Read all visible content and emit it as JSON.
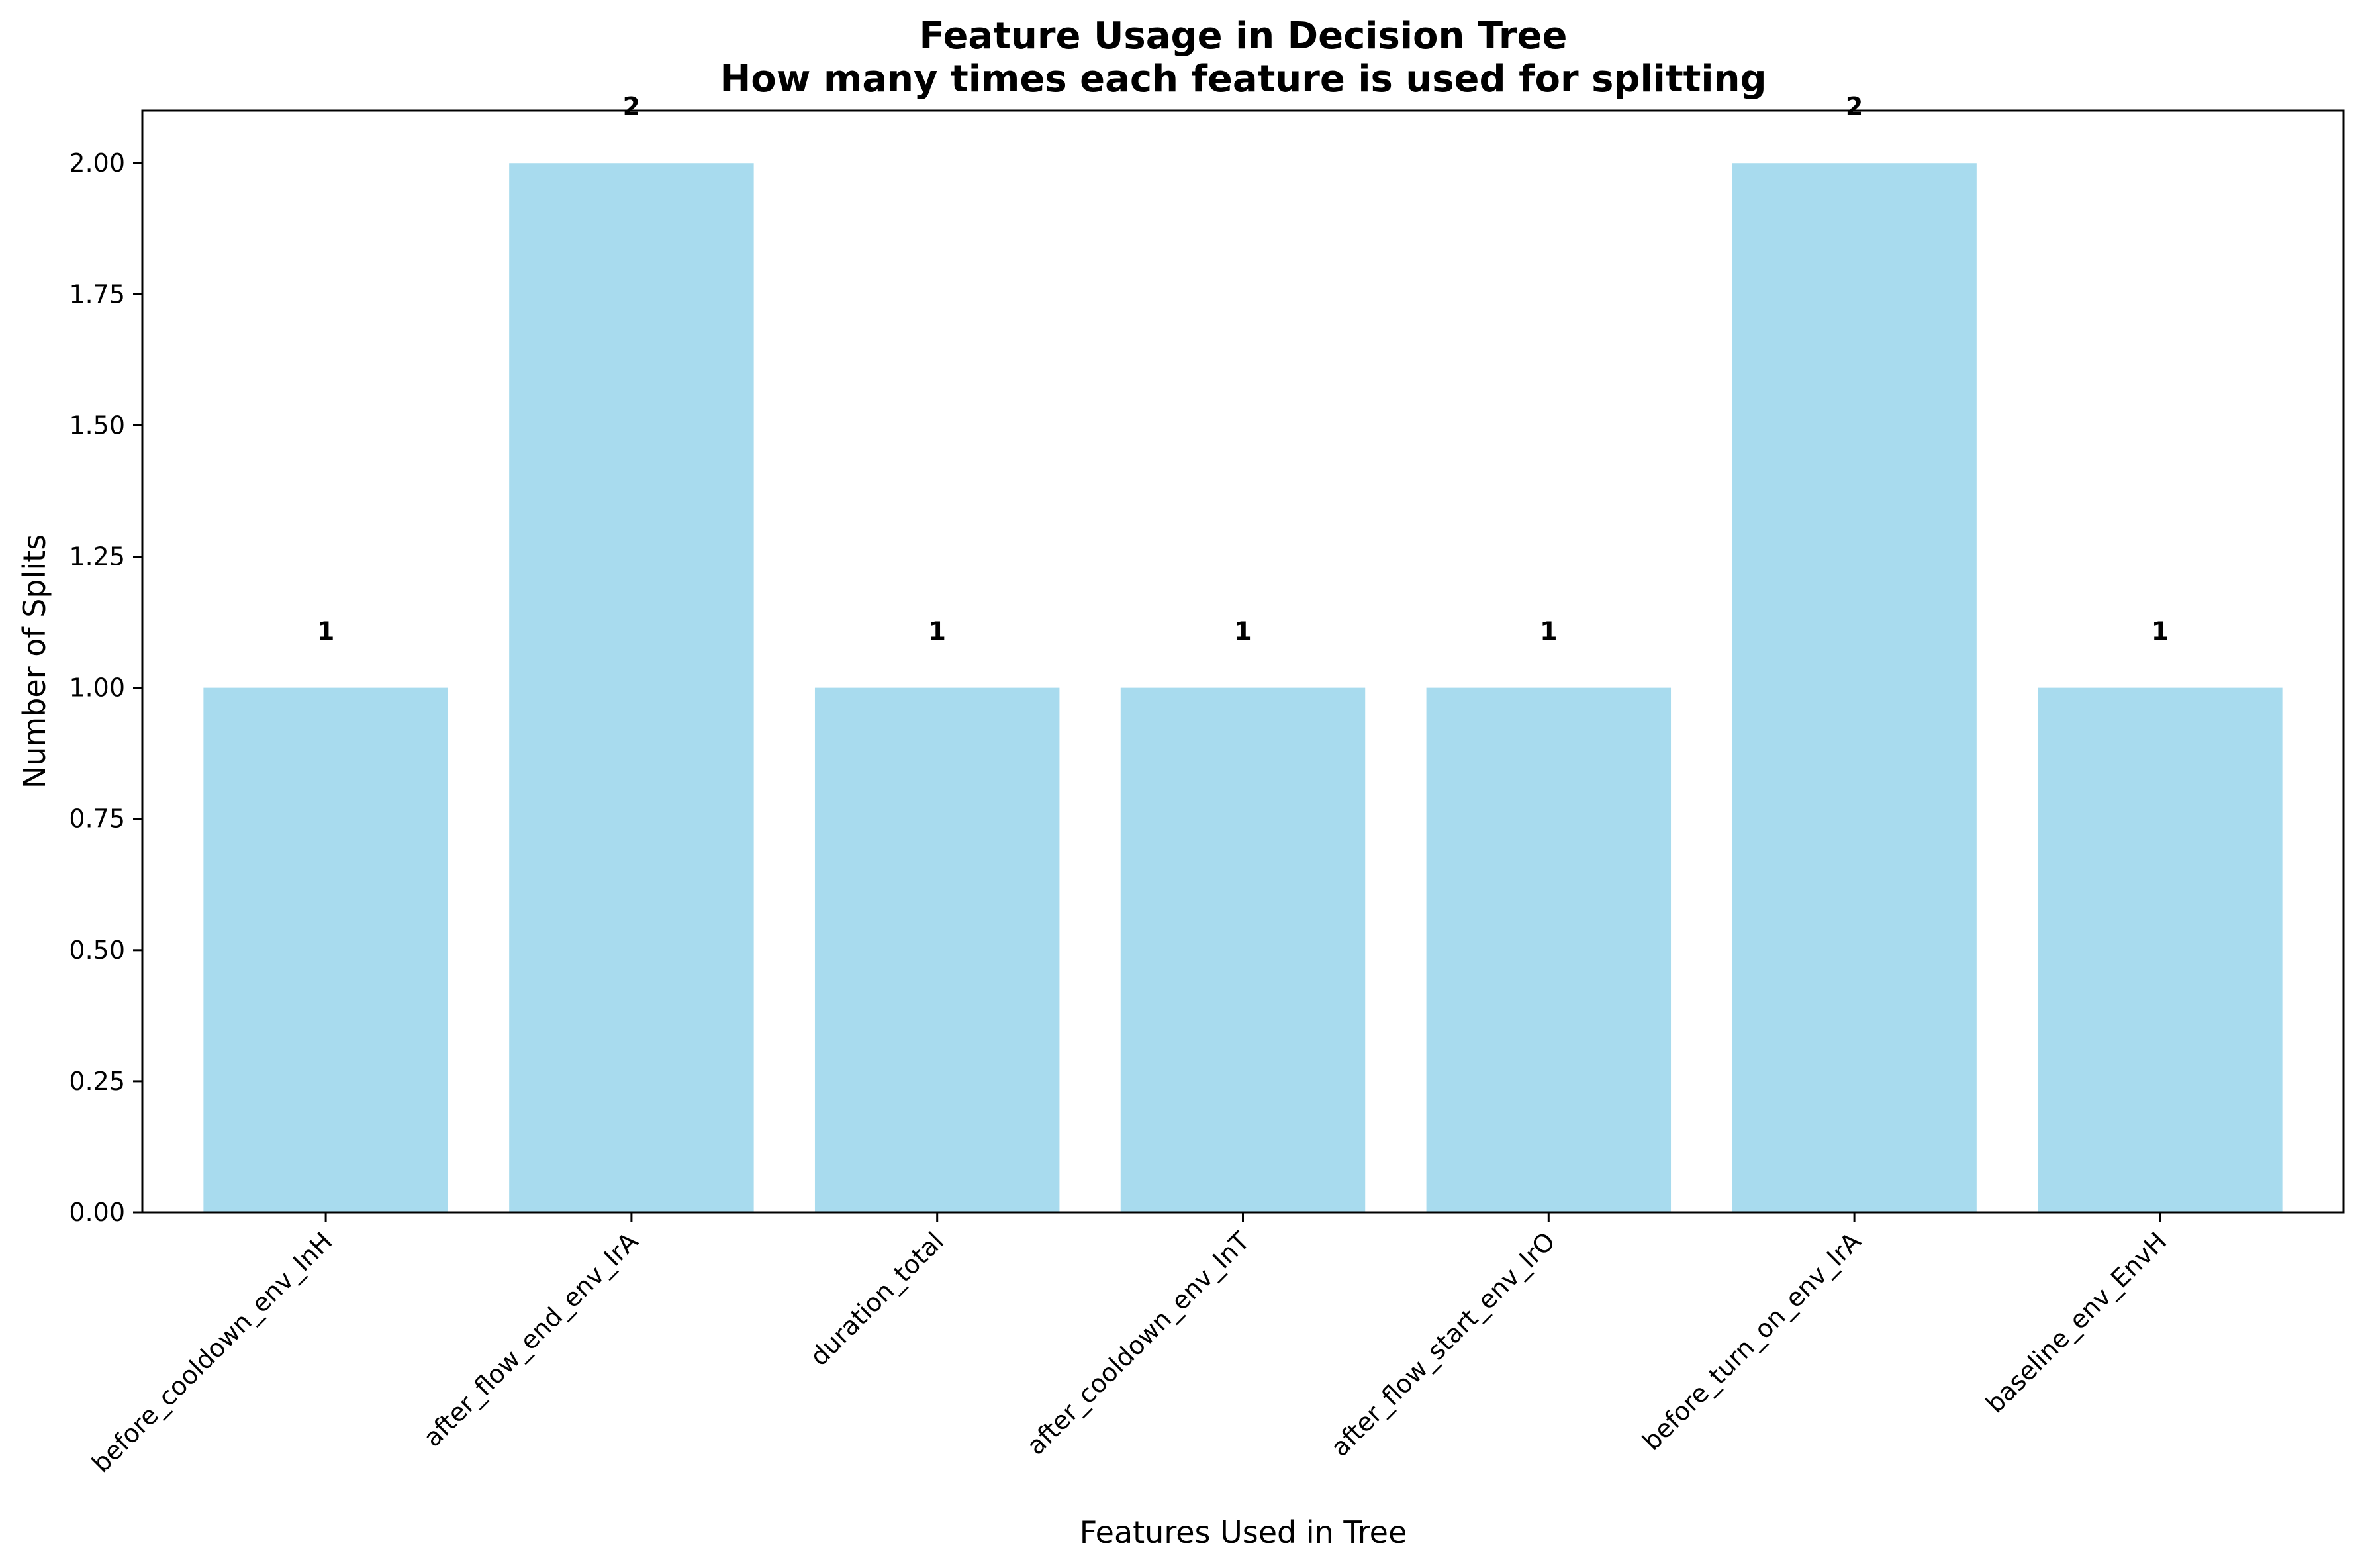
{
  "chart_data": {
    "type": "bar",
    "title": "Feature Usage in Decision Tree",
    "subtitle": "How many times each feature is used for splitting",
    "xlabel": "Features Used in Tree",
    "ylabel": "Number of Splits",
    "categories": [
      "before_cooldown_env_InH",
      "after_flow_end_env_IrA",
      "duration_total",
      "after_cooldown_env_InT",
      "after_flow_start_env_IrO",
      "before_turn_on_env_IrA",
      "baseline_env_EnvH"
    ],
    "values": [
      1,
      2,
      1,
      1,
      1,
      2,
      1
    ],
    "data_labels": [
      "1",
      "2",
      "1",
      "1",
      "1",
      "2",
      "1"
    ],
    "ylim": [
      0,
      2.1
    ],
    "yticks": [
      0,
      0.25,
      0.5,
      0.75,
      1.0,
      1.25,
      1.5,
      1.75,
      2.0
    ],
    "ytick_labels": [
      "0.00",
      "0.25",
      "0.50",
      "0.75",
      "1.00",
      "1.25",
      "1.50",
      "1.75",
      "2.00"
    ],
    "bar_color": "#a8dbee",
    "grid": false,
    "legend": "none"
  }
}
